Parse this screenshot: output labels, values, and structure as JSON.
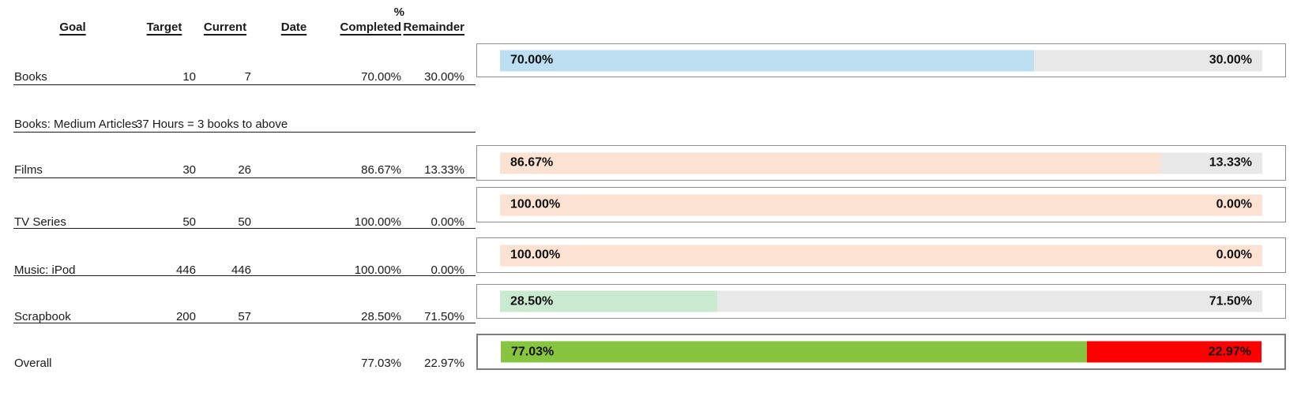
{
  "colors": {
    "books_fill": "#BCDFF2",
    "media_fill": "#FBE2D3",
    "scrapbook_fill": "#C9EACE",
    "overall_fill": "#87C540",
    "overall_remainder": "#FF0000",
    "remainder_gray": "#E8E8E8",
    "bar_border": "#8F8F8F",
    "rule_black": "#1A1A1A"
  },
  "table": {
    "headers": {
      "goal": "Goal",
      "target": "Target",
      "current": "Current",
      "date": "Date",
      "completed_top": "%",
      "completed": "Completed",
      "remainder": "Remainder"
    },
    "note": {
      "label": "Books: Medium Articles",
      "text": "37 Hours = 3 books to above"
    },
    "rows": [
      {
        "goal": "Books",
        "target": "10",
        "current": "7",
        "date": "",
        "completed": "70.00%",
        "remainder": "30.00%"
      },
      {
        "goal": "Films",
        "target": "30",
        "current": "26",
        "date": "",
        "completed": "86.67%",
        "remainder": "13.33%"
      },
      {
        "goal": "TV Series",
        "target": "50",
        "current": "50",
        "date": "",
        "completed": "100.00%",
        "remainder": "0.00%"
      },
      {
        "goal": "Music: iPod",
        "target": "446",
        "current": "446",
        "date": "",
        "completed": "100.00%",
        "remainder": "0.00%"
      },
      {
        "goal": "Scrapbook",
        "target": "200",
        "current": "57",
        "date": "",
        "completed": "28.50%",
        "remainder": "71.50%"
      },
      {
        "goal": "Overall",
        "target": "",
        "current": "",
        "date": "",
        "completed": "77.03%",
        "remainder": "22.97%"
      }
    ]
  },
  "chart_data": {
    "type": "bar",
    "orientation": "horizontal",
    "categories": [
      "Books",
      "Films",
      "TV Series",
      "Music: iPod",
      "Scrapbook",
      "Overall"
    ],
    "series": [
      {
        "name": "% Completed",
        "values": [
          70.0,
          86.67,
          100.0,
          100.0,
          28.5,
          77.03
        ]
      },
      {
        "name": "Remainder",
        "values": [
          30.0,
          13.33,
          0.0,
          0.0,
          71.5,
          22.97
        ]
      }
    ],
    "xlim": [
      0,
      100
    ],
    "legend": "none",
    "grid": false,
    "bars": [
      {
        "name": "Books",
        "completed": 70.0,
        "remainder": 30.0,
        "completed_label": "70.00%",
        "remainder_label": "30.00%",
        "completed_color": "#BCDFF2",
        "remainder_color": "#E8E8E8"
      },
      {
        "name": "Films",
        "completed": 86.67,
        "remainder": 13.33,
        "completed_label": "86.67%",
        "remainder_label": "13.33%",
        "completed_color": "#FBE2D3",
        "remainder_color": "#E8E8E8"
      },
      {
        "name": "TV Series",
        "completed": 100.0,
        "remainder": 0.0,
        "completed_label": "100.00%",
        "remainder_label": "0.00%",
        "completed_color": "#FBE2D3",
        "remainder_color": "#FBE2D3"
      },
      {
        "name": "Music: iPod",
        "completed": 100.0,
        "remainder": 0.0,
        "completed_label": "100.00%",
        "remainder_label": "0.00%",
        "completed_color": "#FBE2D3",
        "remainder_color": "#FBE2D3"
      },
      {
        "name": "Scrapbook",
        "completed": 28.5,
        "remainder": 71.5,
        "completed_label": "28.50%",
        "remainder_label": "71.50%",
        "completed_color": "#C9EACE",
        "remainder_color": "#E8E8E8"
      },
      {
        "name": "Overall",
        "completed": 77.03,
        "remainder": 22.97,
        "completed_label": "77.03%",
        "remainder_label": "22.97%",
        "completed_color": "#87C540",
        "remainder_color": "#FF0000"
      }
    ]
  }
}
